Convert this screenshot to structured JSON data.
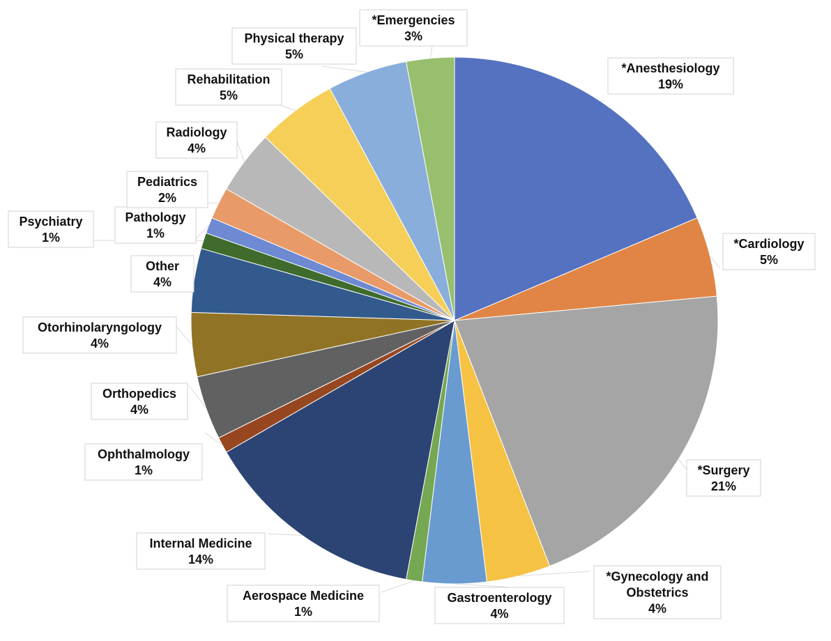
{
  "chart_data": {
    "type": "pie",
    "title": "",
    "slices": [
      {
        "label": "*Anesthesiology",
        "value": 19,
        "pct_label": "19%",
        "color": "#5472c0"
      },
      {
        "label": "*Cardiology",
        "value": 5,
        "pct_label": "5%",
        "color": "#e08545"
      },
      {
        "label": "*Surgery",
        "value": 21,
        "pct_label": "21%",
        "color": "#a5a5a5"
      },
      {
        "label": "*Gynecology and Obstetrics",
        "value": 4,
        "pct_label": "4%",
        "color": "#f5c243"
      },
      {
        "label": "Gastroenterology",
        "value": 4,
        "pct_label": "4%",
        "color": "#699bd0"
      },
      {
        "label": "Aerospace Medicine",
        "value": 1,
        "pct_label": "1%",
        "color": "#76a752"
      },
      {
        "label": "Internal Medicine",
        "value": 14,
        "pct_label": "14%",
        "color": "#2c4473"
      },
      {
        "label": "Ophthalmology",
        "value": 1,
        "pct_label": "1%",
        "color": "#964720"
      },
      {
        "label": "Orthopedics",
        "value": 4,
        "pct_label": "4%",
        "color": "#616161"
      },
      {
        "label": "Otorhinolaryngology",
        "value": 4,
        "pct_label": "4%",
        "color": "#917325"
      },
      {
        "label": "Other",
        "value": 4,
        "pct_label": "4%",
        "color": "#325a8c"
      },
      {
        "label": "Psychiatry",
        "value": 1,
        "pct_label": "1%",
        "color": "#3f6b2c"
      },
      {
        "label": "Pathology",
        "value": 1,
        "pct_label": "1%",
        "color": "#6d8ad2"
      },
      {
        "label": "Pediatrics",
        "value": 2,
        "pct_label": "2%",
        "color": "#e89b68"
      },
      {
        "label": "Radiology",
        "value": 4,
        "pct_label": "4%",
        "color": "#b8b8b8"
      },
      {
        "label": "Rehabilitation",
        "value": 5,
        "pct_label": "5%",
        "color": "#f6cf58"
      },
      {
        "label": "Physical therapy",
        "value": 5,
        "pct_label": "5%",
        "color": "#89aedb"
      },
      {
        "label": "*Emergencies",
        "value": 3,
        "pct_label": "3%",
        "color": "#98bf6e"
      }
    ],
    "start_angle_deg": 0,
    "direction": "clockwise",
    "legend": "none",
    "data_labels": "callouts"
  }
}
